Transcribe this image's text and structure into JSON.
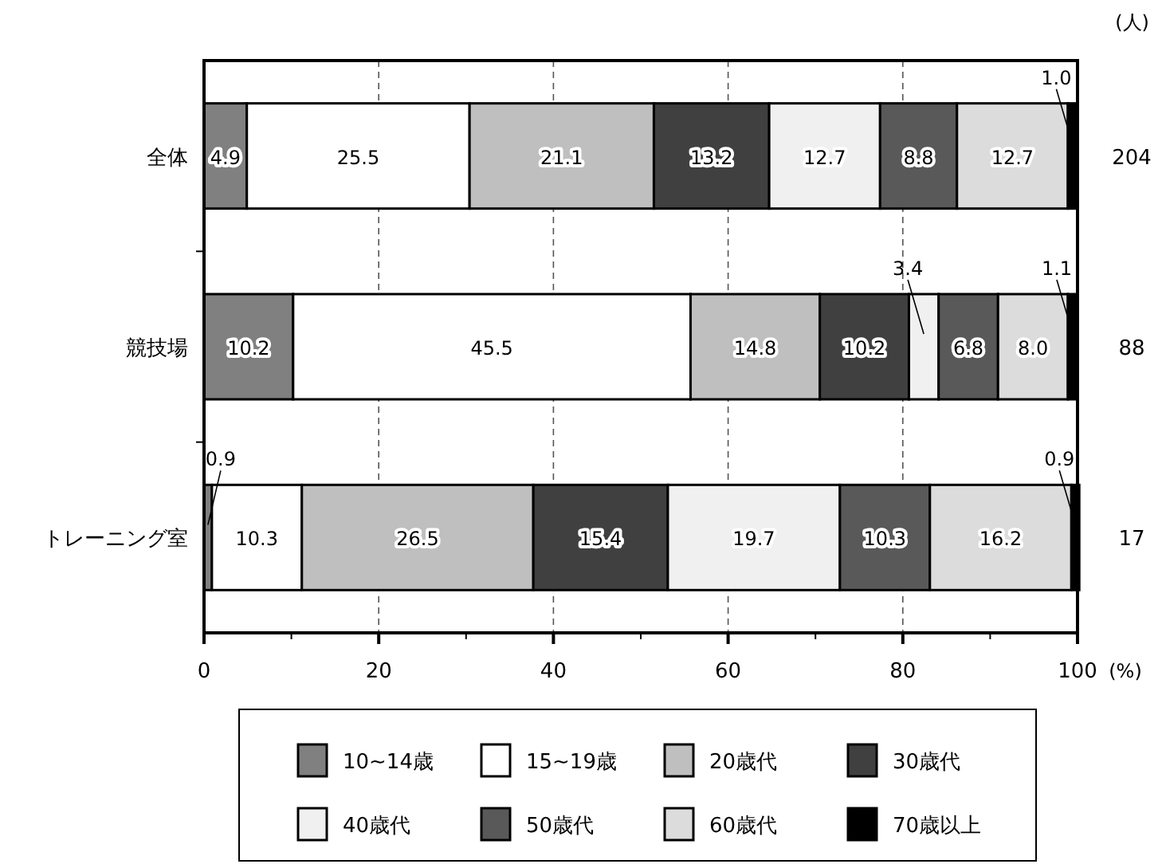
{
  "chart_data": {
    "type": "bar",
    "orientation": "horizontal",
    "stacked": true,
    "categories": [
      "全体",
      "競技場",
      "トレーニング室"
    ],
    "series": [
      {
        "name": "10~14歳",
        "color": "#808080",
        "values": [
          4.9,
          10.2,
          0.9
        ],
        "value_labels": [
          "4.9",
          "10.2",
          "0.9"
        ]
      },
      {
        "name": "15~19歳",
        "color": "#ffffff",
        "values": [
          25.5,
          45.5,
          10.3
        ],
        "value_labels": [
          "25.5",
          "45.5",
          "10.3"
        ]
      },
      {
        "name": "20歳代",
        "color": "#bfbfbf",
        "values": [
          21.1,
          14.8,
          26.5
        ],
        "value_labels": [
          "21.1",
          "14.8",
          "26.5"
        ]
      },
      {
        "name": "30歳代",
        "color": "#404040",
        "values": [
          13.2,
          10.2,
          15.4
        ],
        "value_labels": [
          "13.2",
          "10.2",
          "15.4"
        ]
      },
      {
        "name": "40歳代",
        "color": "#f0f0f0",
        "values": [
          12.7,
          3.4,
          19.7
        ],
        "value_labels": [
          "12.7",
          "3.4",
          "19.7"
        ]
      },
      {
        "name": "50歳代",
        "color": "#595959",
        "values": [
          8.8,
          6.8,
          10.3
        ],
        "value_labels": [
          "8.8",
          "6.8",
          "10.3"
        ]
      },
      {
        "name": "60歳代",
        "color": "#dcdcdc",
        "values": [
          12.7,
          8.0,
          16.2
        ],
        "value_labels": [
          "12.7",
          "8.0",
          "16.2"
        ]
      },
      {
        "name": "70歳以上",
        "color": "#000000",
        "values": [
          1.0,
          1.1,
          0.9
        ],
        "value_labels": [
          "1.0",
          "1.1",
          "0.9"
        ]
      }
    ],
    "xlim": [
      0,
      100
    ],
    "xticks": [
      0,
      20,
      40,
      60,
      80,
      100
    ],
    "xlabel": "(%)",
    "grid": "x",
    "legend": "bottom",
    "annotations": [
      "(人)",
      "204",
      "88",
      "17"
    ]
  }
}
